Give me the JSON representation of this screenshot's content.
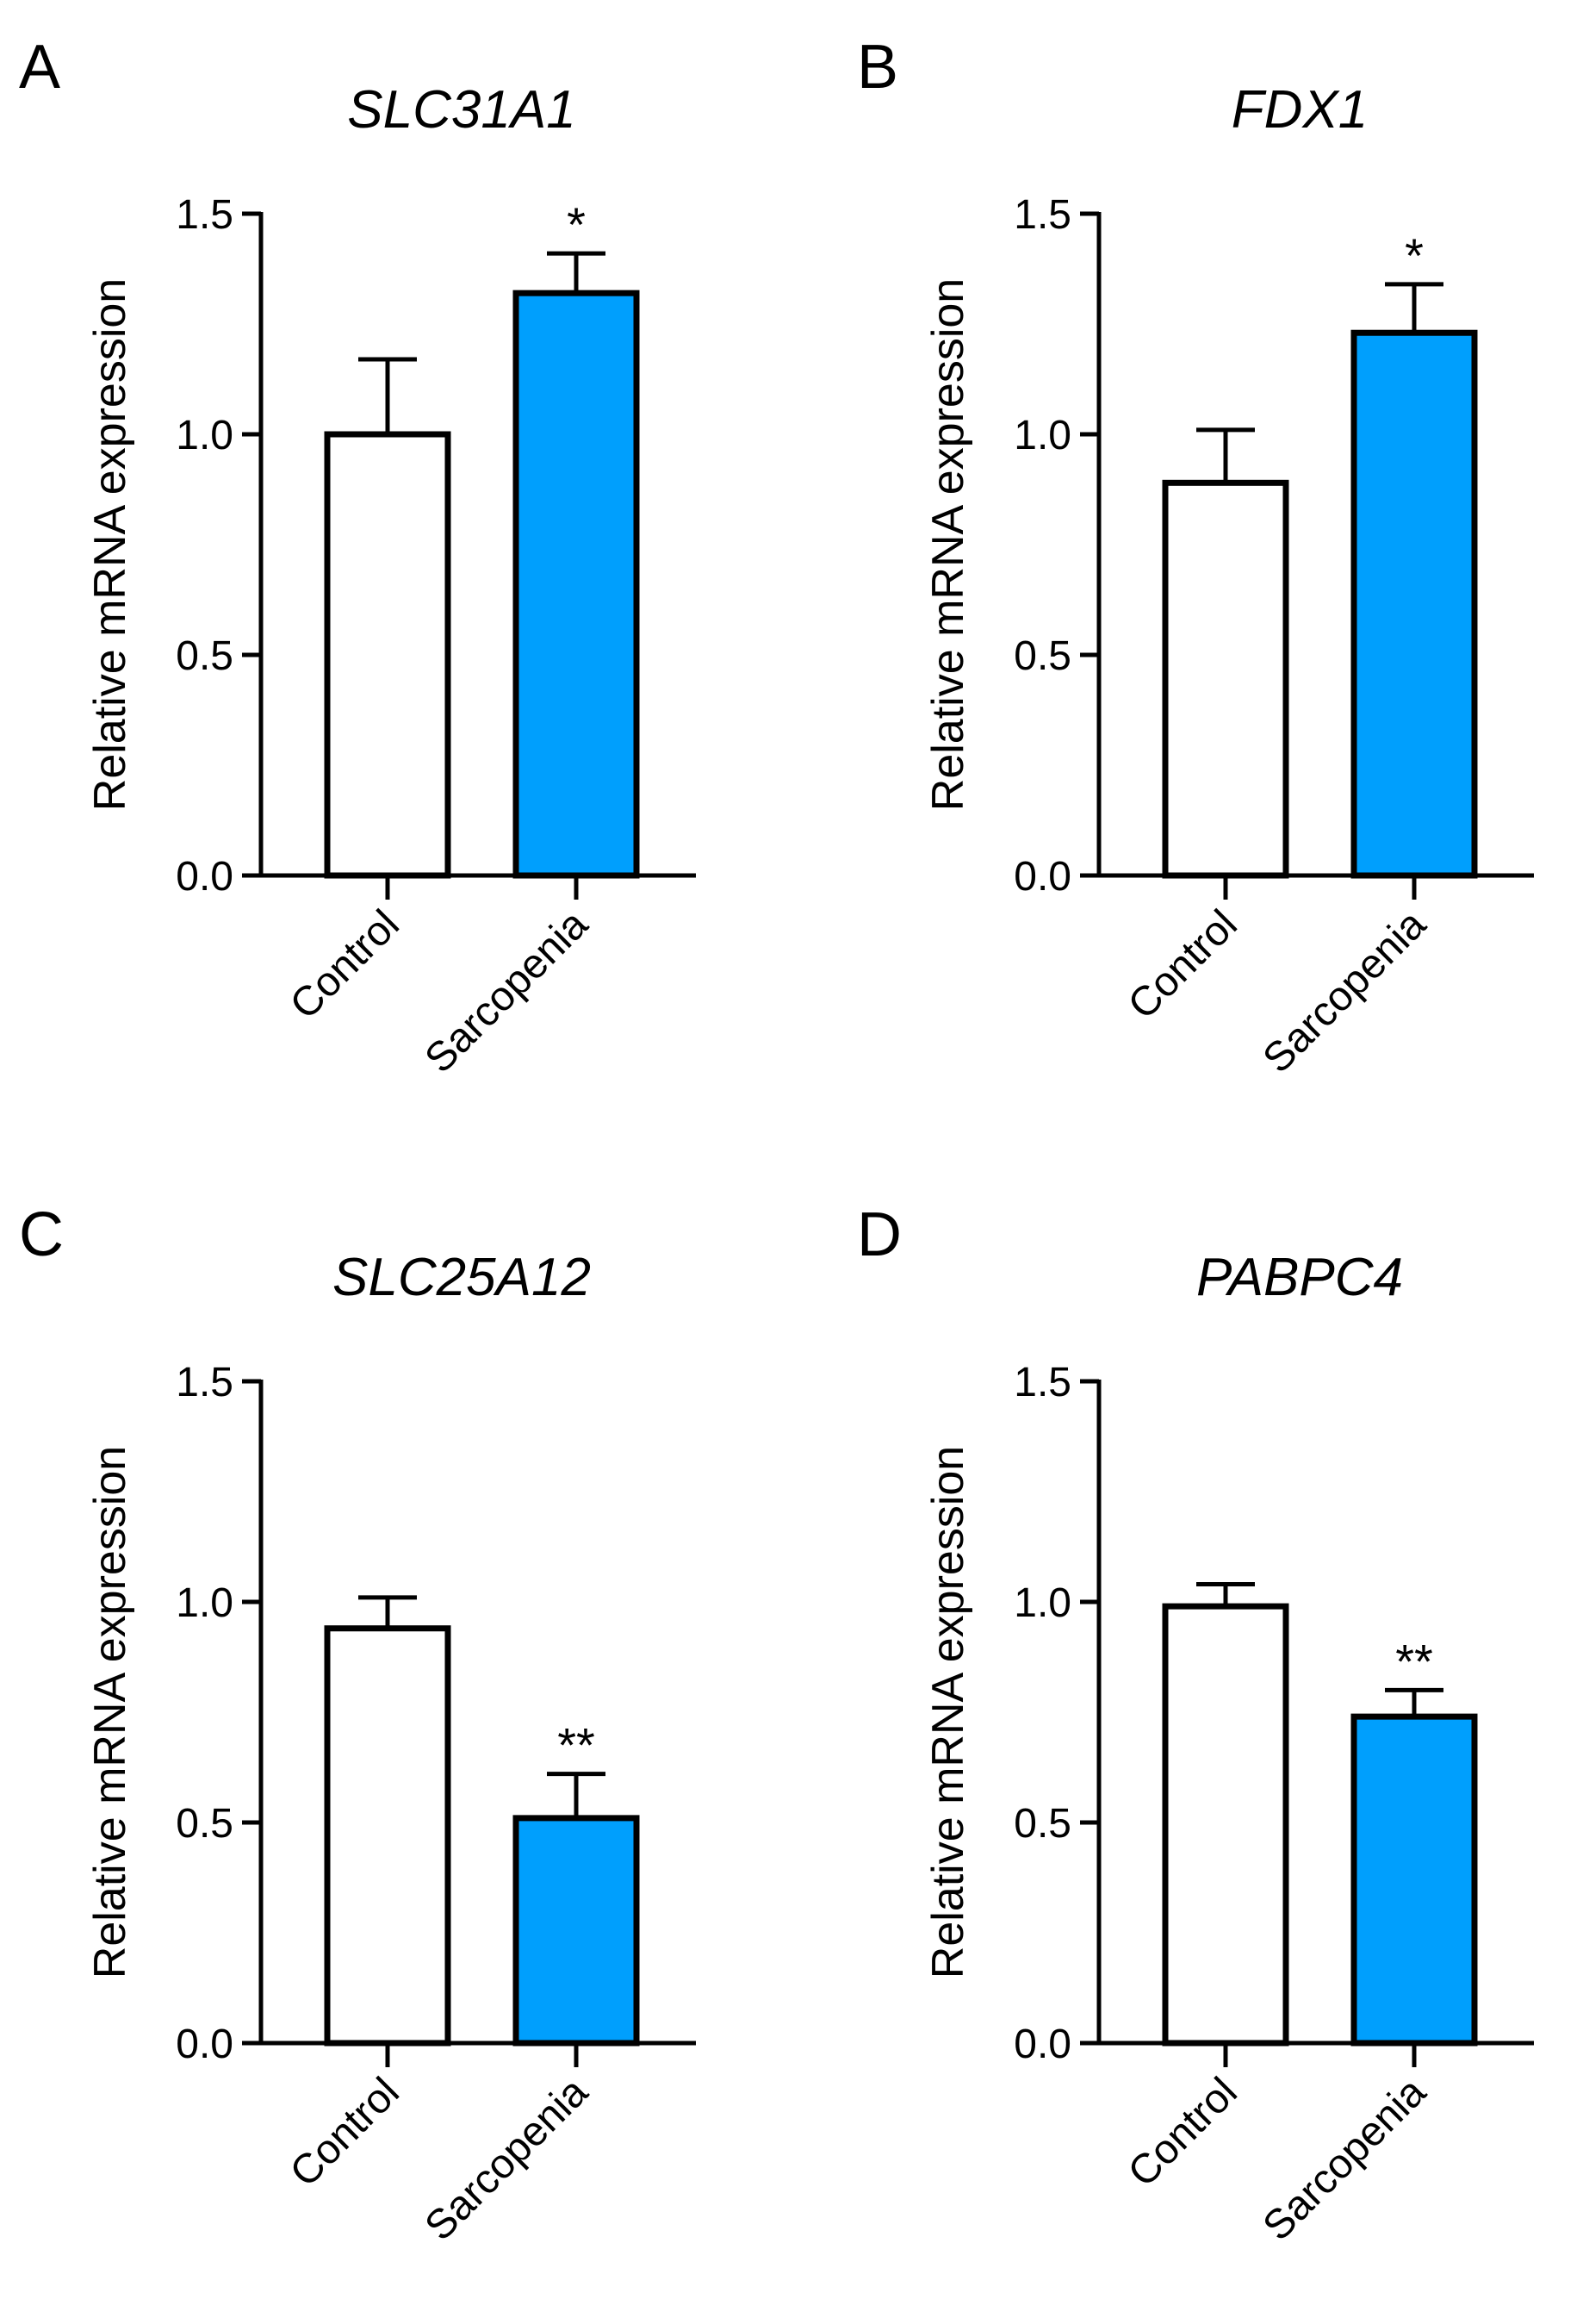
{
  "chart_data": [
    {
      "type": "bar",
      "panel": "A",
      "title": "SLC31A1",
      "xlabel": "",
      "ylabel": "Relative mRNA expression",
      "ylim": [
        0,
        1.5
      ],
      "yticks": [
        "0.0",
        "0.5",
        "1.0",
        "1.5"
      ],
      "categories": [
        "Control",
        "Sarcopenia"
      ],
      "values": [
        1.0,
        1.32
      ],
      "errors": [
        0.17,
        0.09
      ],
      "significance": [
        "",
        "*"
      ],
      "colors": [
        "#ffffff",
        "#009ffd"
      ]
    },
    {
      "type": "bar",
      "panel": "B",
      "title": "FDX1",
      "xlabel": "",
      "ylabel": "Relative mRNA expression",
      "ylim": [
        0,
        1.5
      ],
      "yticks": [
        "0.0",
        "0.5",
        "1.0",
        "1.5"
      ],
      "categories": [
        "Control",
        "Sarcopenia"
      ],
      "values": [
        0.89,
        1.23
      ],
      "errors": [
        0.12,
        0.11
      ],
      "significance": [
        "",
        "*"
      ],
      "colors": [
        "#ffffff",
        "#009ffd"
      ]
    },
    {
      "type": "bar",
      "panel": "C",
      "title": "SLC25A12",
      "xlabel": "",
      "ylabel": "Relative mRNA expression",
      "ylim": [
        0,
        1.5
      ],
      "yticks": [
        "0.0",
        "0.5",
        "1.0",
        "1.5"
      ],
      "categories": [
        "Control",
        "Sarcopenia"
      ],
      "values": [
        0.94,
        0.51
      ],
      "errors": [
        0.07,
        0.1
      ],
      "significance": [
        "",
        "**"
      ],
      "colors": [
        "#ffffff",
        "#009ffd"
      ]
    },
    {
      "type": "bar",
      "panel": "D",
      "title": "PABPC4",
      "xlabel": "",
      "ylabel": "Relative mRNA expression",
      "ylim": [
        0,
        1.5
      ],
      "yticks": [
        "0.0",
        "0.5",
        "1.0",
        "1.5"
      ],
      "categories": [
        "Control",
        "Sarcopenia"
      ],
      "values": [
        0.99,
        0.74
      ],
      "errors": [
        0.05,
        0.06
      ],
      "significance": [
        "",
        "**"
      ],
      "colors": [
        "#ffffff",
        "#009ffd"
      ]
    }
  ]
}
